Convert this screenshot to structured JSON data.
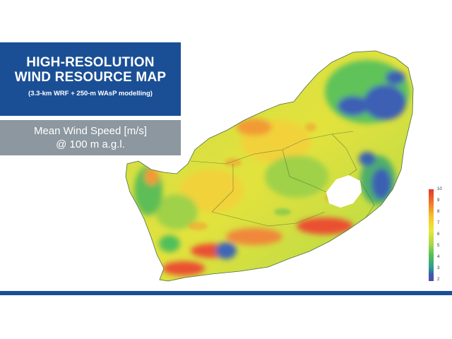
{
  "title": {
    "line1": "HIGH-RESOLUTION",
    "line2": "WIND RESOURCE MAP",
    "subtitle": "(3.3-km WRF + 250-m WAsP modelling)"
  },
  "legend_title": {
    "line1": "Mean Wind Speed [m/s]",
    "line2": "@ 100 m a.g.l."
  },
  "color_scale": {
    "min": 2,
    "max": 10,
    "ticks": [
      "10",
      "9",
      "8",
      "7",
      "6",
      "5",
      "4",
      "3",
      "2"
    ],
    "colors": [
      "#e6352b",
      "#f07a2a",
      "#f6c52a",
      "#e9e83a",
      "#a6d84a",
      "#4fbf5a",
      "#2f9e8e",
      "#3a5ab0",
      "#5b4aa6"
    ]
  },
  "map": {
    "region": "South Africa",
    "dominant_colors": {
      "high": "#e94b2f",
      "mid_high": "#f2d33b",
      "mid": "#9cd24a",
      "low": "#3a67b5",
      "lesotho": "#ffffff"
    }
  }
}
